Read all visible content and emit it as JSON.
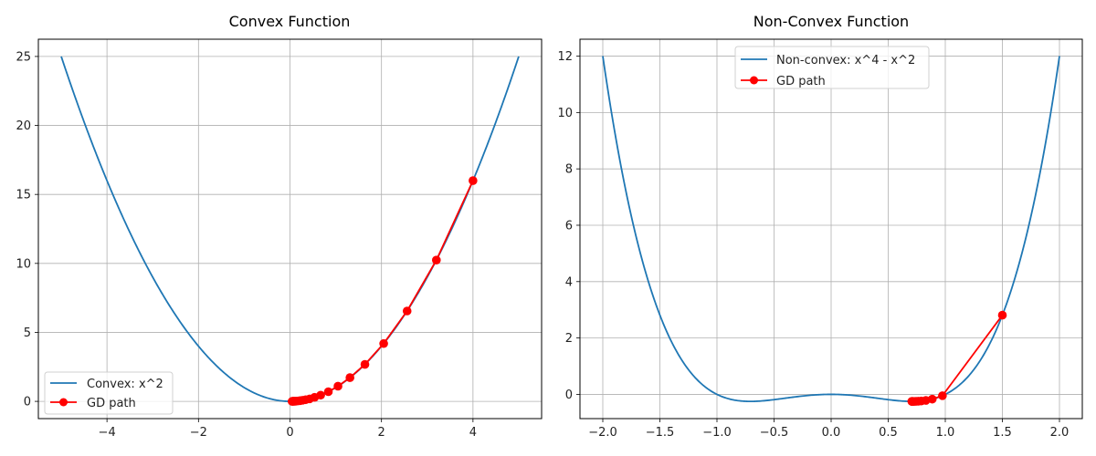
{
  "chart_data": [
    {
      "type": "line",
      "title": "Convex Function",
      "xlabel": "",
      "ylabel": "",
      "xlim": [
        -5.5,
        5.5
      ],
      "ylim": [
        -1.25,
        26.25
      ],
      "xticks": [
        -4,
        -2,
        0,
        2,
        4
      ],
      "yticks": [
        0,
        5,
        10,
        15,
        20,
        25
      ],
      "grid": true,
      "legend_position": "lower left",
      "series": [
        {
          "name": "Convex: x^2",
          "color": "#1f77b4",
          "function": "x^2",
          "x_range": [
            -5,
            5
          ]
        },
        {
          "name": "GD path",
          "color": "#ff0000",
          "marker": "o",
          "x": [
            4.0,
            3.2,
            2.56,
            2.048,
            1.638,
            1.311,
            1.049,
            0.839,
            0.671,
            0.537,
            0.429,
            0.344,
            0.275,
            0.22,
            0.176,
            0.141,
            0.113,
            0.09,
            0.072,
            0.058,
            0.046
          ],
          "y": [
            16.0,
            10.24,
            6.55,
            4.19,
            2.68,
            1.72,
            1.1,
            0.7,
            0.45,
            0.29,
            0.18,
            0.12,
            0.08,
            0.05,
            0.03,
            0.02,
            0.01,
            0.01,
            0.01,
            0.0,
            0.0
          ]
        }
      ]
    },
    {
      "type": "line",
      "title": "Non-Convex Function",
      "xlabel": "",
      "ylabel": "",
      "xlim": [
        -2.2,
        2.2
      ],
      "ylim": [
        -0.86,
        12.6
      ],
      "xticks": [
        -2.0,
        -1.5,
        -1.0,
        -0.5,
        0.0,
        0.5,
        1.0,
        1.5,
        2.0
      ],
      "yticks": [
        0,
        2,
        4,
        6,
        8,
        10,
        12
      ],
      "grid": true,
      "legend_position": "upper center",
      "series": [
        {
          "name": "Non-convex: x^4 - x^2",
          "color": "#1f77b4",
          "function": "x^4 - x^2",
          "x_range": [
            -2,
            2
          ]
        },
        {
          "name": "GD path",
          "color": "#ff0000",
          "marker": "o",
          "x": [
            1.5,
            0.975,
            0.886,
            0.83,
            0.79,
            0.763,
            0.744,
            0.731,
            0.722,
            0.716,
            0.712,
            0.71,
            0.709,
            0.708,
            0.707
          ],
          "y": [
            2.81,
            -0.047,
            -0.169,
            -0.214,
            -0.235,
            -0.243,
            -0.247,
            -0.249,
            -0.25,
            -0.25,
            -0.25,
            -0.25,
            -0.25,
            -0.25,
            -0.25
          ]
        }
      ]
    }
  ],
  "left": {
    "title": "Convex Function",
    "xtick_labels": [
      "−4",
      "−2",
      "0",
      "2",
      "4"
    ],
    "ytick_labels": [
      "0",
      "5",
      "10",
      "15",
      "20",
      "25"
    ],
    "legend": {
      "item0": "Convex: x^2",
      "item1": "GD path"
    }
  },
  "right": {
    "title": "Non-Convex Function",
    "xtick_labels": [
      "−2.0",
      "−1.5",
      "−1.0",
      "−0.5",
      "0.0",
      "0.5",
      "1.0",
      "1.5",
      "2.0"
    ],
    "ytick_labels": [
      "0",
      "2",
      "4",
      "6",
      "8",
      "10",
      "12"
    ],
    "legend": {
      "item0": "Non-convex: x^4 - x^2",
      "item1": "GD path"
    }
  }
}
